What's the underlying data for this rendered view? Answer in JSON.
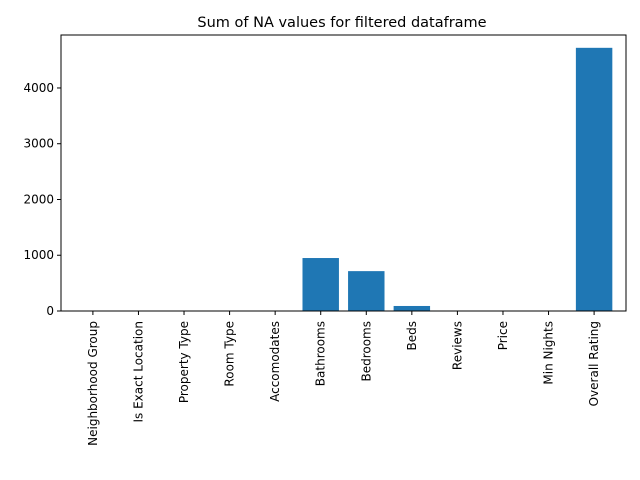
{
  "chart_data": {
    "type": "bar",
    "title": "Sum of NA values for filtered dataframe",
    "xlabel": "",
    "ylabel": "",
    "categories": [
      "Neighborhood Group",
      "Is Exact Location",
      "Property Type",
      "Room Type",
      "Accomodates",
      "Bathrooms",
      "Bedrooms",
      "Beds",
      "Reviews",
      "Price",
      "Min Nights",
      "Overall Rating"
    ],
    "values": [
      0,
      0,
      0,
      0,
      0,
      950,
      715,
      90,
      0,
      0,
      0,
      4720
    ],
    "ylim": [
      0,
      4950
    ],
    "yticks": [
      0,
      1000,
      2000,
      3000,
      4000
    ],
    "ytick_labels": [
      "0",
      "1000",
      "2000",
      "3000",
      "4000"
    ],
    "grid": false,
    "legend": "none",
    "bar_color": "#1f77b4"
  }
}
